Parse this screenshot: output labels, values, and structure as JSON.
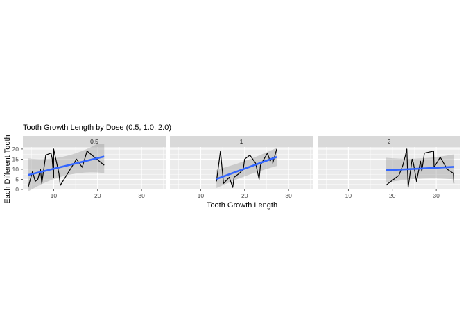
{
  "chart_data": {
    "type": "line",
    "title": "Tooth Growth Length by Dose (0.5, 1.0, 2.0)",
    "xlabel": "Tooth Growth Length",
    "ylabel": "Each Different Tooth",
    "xlim": [
      3,
      35.5
    ],
    "ylim": [
      0,
      21
    ],
    "x_ticks": [
      10,
      20,
      30
    ],
    "y_ticks": [
      0,
      5,
      10,
      15,
      20
    ],
    "grid": true,
    "smooth_color": "#3366FF",
    "panel_bg": "#EBEBEB",
    "strip_bg": "#D9D9D9",
    "facets": [
      {
        "label": "0.5",
        "series": {
          "x": [
            4.2,
            5.2,
            5.8,
            6.4,
            7.0,
            7.3,
            8.2,
            9.4,
            9.7,
            9.7,
            10.0,
            10.0,
            11.2,
            11.5,
            15.2,
            16.5,
            17.6,
            21.5
          ],
          "y": [
            1,
            9,
            4,
            5,
            10,
            3,
            17,
            18,
            15,
            14,
            6,
            20,
            8,
            2,
            15,
            11,
            19,
            12
          ]
        },
        "smooth": {
          "x": [
            4.2,
            21.5
          ],
          "y": [
            7.2,
            16.3
          ],
          "se": [
            4.8,
            8.2
          ]
        }
      },
      {
        "label": "1",
        "series": {
          "x": [
            13.6,
            14.5,
            15.2,
            16.5,
            17.3,
            17.6,
            18.8,
            19.7,
            20.0,
            21.2,
            22.5,
            23.3,
            23.6,
            25.2,
            25.5,
            25.8,
            26.4,
            26.4,
            27.3
          ],
          "y": [
            4,
            19,
            3,
            6,
            1,
            6,
            8,
            10,
            15,
            17,
            13,
            5,
            12,
            18,
            16,
            14,
            16,
            13,
            20
          ]
        },
        "smooth": {
          "x": [
            13.6,
            27.3
          ],
          "y": [
            5.2,
            16.1
          ],
          "se": [
            3.8,
            4.5
          ]
        }
      },
      {
        "label": "2",
        "series": {
          "x": [
            18.5,
            21.5,
            22.4,
            23.0,
            23.3,
            23.6,
            24.5,
            24.8,
            25.5,
            26.4,
            26.7,
            27.3,
            29.4,
            29.5,
            30.9,
            32.5,
            33.9,
            34.0
          ],
          "y": [
            2,
            7,
            12,
            17,
            20,
            1,
            15,
            13,
            4,
            14,
            9,
            18,
            19,
            11,
            16,
            10,
            8,
            3
          ]
        },
        "smooth": {
          "x": [
            18.5,
            34.0
          ],
          "y": [
            9.5,
            11.2
          ],
          "se": [
            5.0,
            6.2
          ]
        }
      }
    ]
  }
}
